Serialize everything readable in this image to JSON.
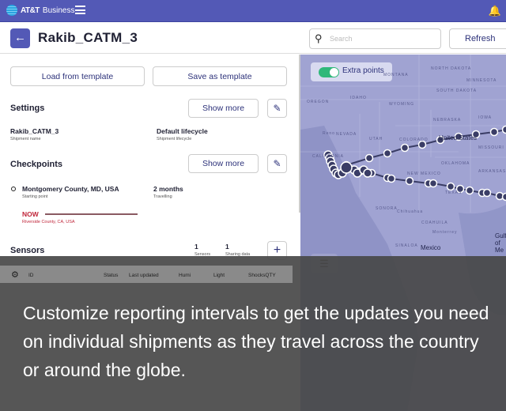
{
  "topbar": {
    "brand_bold": "AT&T",
    "brand": "Business",
    "menu_icon": "hamburger-icon",
    "bell_icon": "bell-icon"
  },
  "header": {
    "title": "Rakib_CATM_3",
    "search_placeholder": "Search",
    "refresh_label": "Refresh"
  },
  "actions": {
    "load": "Load from template",
    "save": "Save as template"
  },
  "settings": {
    "title": "Settings",
    "show_more": "Show more",
    "name_value": "Rakib_CATM_3",
    "name_label": "Shipment name",
    "lifecycle_value": "Default lifecycle",
    "lifecycle_label": "Shipment lifecycle"
  },
  "checkpoints": {
    "title": "Checkpoints",
    "show_more": "Show more",
    "start_value": "Montgomery County, MD, USA",
    "start_label": "Starting point",
    "duration_value": "2 months",
    "duration_label": "Travelling",
    "now_label": "NOW",
    "now_location": "Riverside County, CA, USA",
    "now_color": "#c0263a"
  },
  "sensors": {
    "title": "Sensors",
    "sensors_count": "1",
    "sensors_label": "Sensors",
    "sharing_count": "1",
    "sharing_label": "Sharing data",
    "columns": [
      "ID",
      "Status",
      "Last updated",
      "Humi",
      "Light",
      "ShocksQTY"
    ]
  },
  "map": {
    "toggle_label": "Extra points",
    "toggle_on": true,
    "labels": {
      "nd": "NORTH DAKOTA",
      "sd": "SOUTH DAKOTA",
      "mn": "MINNESOTA",
      "or": "OREGON",
      "id": "IDAHO",
      "mt": "MONTANA",
      "wy": "WYOMING",
      "ne": "NEBRASKA",
      "ia": "IOWA",
      "nv": "NEVADA",
      "reno": "Reno",
      "ut": "UTAH",
      "co": "COLORADO",
      "us": "United States",
      "mo": "MISSOURI",
      "ca": "CALIFORNIA",
      "ok": "OKLAHOMA",
      "ar": "ARKANSAS",
      "nm": "NEW MEXICO",
      "tx": "TEXAS",
      "so": "SONORA",
      "chih": "Chihuahua",
      "coah": "COAHUILA",
      "mty": "Monterrey",
      "mx": "Mexico",
      "sin": "SINALOA",
      "gulf": "Gulf of Me"
    },
    "route_color": "#3a3d66"
  },
  "caption": "Customize reporting intervals to get the updates you need on individual shipments as they travel across the country or around the globe."
}
